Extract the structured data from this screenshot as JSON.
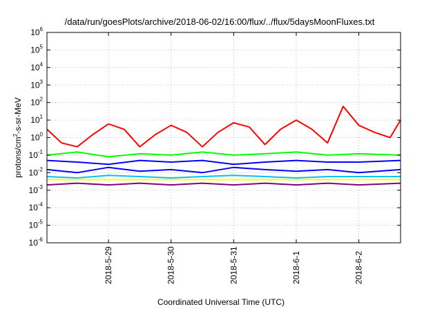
{
  "chart_data": {
    "type": "line",
    "title": "/data/run/goesPlots/archive/2018-06-02/16:00/flux/../flux/5daysMoonFluxes.txt",
    "xlabel": "Coordinated Universal Time (UTC)",
    "ylabel": {
      "pre": "protons/cm",
      "sup": "2",
      "post": "-s-sr-MeV"
    },
    "y_scale": "log",
    "ylim": [
      -6,
      6
    ],
    "y_ticks": [
      {
        "base": "10",
        "exp": "-6"
      },
      {
        "base": "10",
        "exp": "-5"
      },
      {
        "base": "10",
        "exp": "-4"
      },
      {
        "base": "10",
        "exp": "-3"
      },
      {
        "base": "10",
        "exp": "-2"
      },
      {
        "base": "10",
        "exp": "-1"
      },
      {
        "base": "10",
        "exp": "0"
      },
      {
        "base": "10",
        "exp": "1"
      },
      {
        "base": "10",
        "exp": "2"
      },
      {
        "base": "10",
        "exp": "3"
      },
      {
        "base": "10",
        "exp": "4"
      },
      {
        "base": "10",
        "exp": "5"
      },
      {
        "base": "10",
        "exp": "6"
      }
    ],
    "xlim": [
      "2018-05-28T00:24",
      "2018-06-02T16:00"
    ],
    "x_tick_labels": [
      "2018-5-29",
      "2018-5-30",
      "2018-5-31",
      "2018-6-1",
      "2018-6-2"
    ],
    "x_tick_dates": [
      "2018-05-29",
      "2018-05-30",
      "2018-05-31",
      "2018-06-01",
      "2018-06-02"
    ],
    "grid": true,
    "legend": "none",
    "series": [
      {
        "color": "#ff0000",
        "x": [
          "2018-05-28T00:24",
          "2018-05-28T06:00",
          "2018-05-28T12:00",
          "2018-05-28T18:00",
          "2018-05-29T00:00",
          "2018-05-29T06:00",
          "2018-05-29T12:00",
          "2018-05-29T18:00",
          "2018-05-30T00:00",
          "2018-05-30T06:00",
          "2018-05-30T12:00",
          "2018-05-30T18:00",
          "2018-05-31T00:00",
          "2018-05-31T06:00",
          "2018-05-31T12:00",
          "2018-05-31T18:00",
          "2018-06-01T00:00",
          "2018-06-01T06:00",
          "2018-06-01T12:00",
          "2018-06-01T18:00",
          "2018-06-02T00:00",
          "2018-06-02T06:00",
          "2018-06-02T12:00",
          "2018-06-02T16:00"
        ],
        "y": [
          3,
          0.5,
          0.3,
          1.5,
          6,
          3,
          0.3,
          1.5,
          5,
          2,
          0.3,
          2,
          7,
          4,
          0.4,
          3,
          10,
          3,
          0.5,
          60,
          5,
          2,
          1,
          10
        ]
      },
      {
        "color": "#00ff00",
        "x": [
          "2018-05-28T00:24",
          "2018-05-28T12:00",
          "2018-05-29T00:00",
          "2018-05-29T12:00",
          "2018-05-30T00:00",
          "2018-05-30T12:00",
          "2018-05-31T00:00",
          "2018-05-31T12:00",
          "2018-06-01T00:00",
          "2018-06-01T12:00",
          "2018-06-02T00:00",
          "2018-06-02T16:00"
        ],
        "y": [
          0.1,
          0.15,
          0.08,
          0.12,
          0.1,
          0.15,
          0.1,
          0.12,
          0.15,
          0.1,
          0.12,
          0.1
        ]
      },
      {
        "color": "#0000ff",
        "x": [
          "2018-05-28T00:24",
          "2018-05-28T12:00",
          "2018-05-29T00:00",
          "2018-05-29T12:00",
          "2018-05-30T00:00",
          "2018-05-30T12:00",
          "2018-05-31T00:00",
          "2018-05-31T12:00",
          "2018-06-01T00:00",
          "2018-06-01T12:00",
          "2018-06-02T00:00",
          "2018-06-02T16:00"
        ],
        "y": [
          0.05,
          0.04,
          0.03,
          0.05,
          0.04,
          0.05,
          0.03,
          0.04,
          0.05,
          0.04,
          0.04,
          0.05
        ]
      },
      {
        "color": "#0000ff",
        "x": [
          "2018-05-28T00:24",
          "2018-05-28T12:00",
          "2018-05-29T00:00",
          "2018-05-29T12:00",
          "2018-05-30T00:00",
          "2018-05-30T12:00",
          "2018-05-31T00:00",
          "2018-05-31T12:00",
          "2018-06-01T00:00",
          "2018-06-01T12:00",
          "2018-06-02T00:00",
          "2018-06-02T16:00"
        ],
        "y": [
          0.015,
          0.01,
          0.02,
          0.012,
          0.015,
          0.01,
          0.02,
          0.015,
          0.012,
          0.015,
          0.01,
          0.015
        ]
      },
      {
        "color": "#00bfff",
        "x": [
          "2018-05-28T00:24",
          "2018-05-28T12:00",
          "2018-05-29T00:00",
          "2018-05-29T12:00",
          "2018-05-30T00:00",
          "2018-05-30T12:00",
          "2018-05-31T00:00",
          "2018-05-31T12:00",
          "2018-06-01T00:00",
          "2018-06-01T12:00",
          "2018-06-02T00:00",
          "2018-06-02T16:00"
        ],
        "y": [
          0.006,
          0.005,
          0.007,
          0.006,
          0.005,
          0.006,
          0.007,
          0.006,
          0.005,
          0.006,
          0.006,
          0.006
        ]
      },
      {
        "color": "#ffff00",
        "x": [
          "2018-05-28T00:24",
          "2018-05-28T12:00",
          "2018-05-29T00:00",
          "2018-05-29T12:00",
          "2018-05-30T00:00",
          "2018-05-30T12:00",
          "2018-05-31T00:00",
          "2018-05-31T12:00",
          "2018-06-01T00:00",
          "2018-06-01T12:00",
          "2018-06-02T00:00",
          "2018-06-02T16:00"
        ],
        "y": [
          0.004,
          0.004,
          0.004,
          0.004,
          0.004,
          0.004,
          0.004,
          0.004,
          0.004,
          0.004,
          0.004,
          0.004
        ]
      },
      {
        "color": "#800080",
        "x": [
          "2018-05-28T00:24",
          "2018-05-28T12:00",
          "2018-05-29T00:00",
          "2018-05-29T12:00",
          "2018-05-30T00:00",
          "2018-05-30T12:00",
          "2018-05-31T00:00",
          "2018-05-31T12:00",
          "2018-06-01T00:00",
          "2018-06-01T12:00",
          "2018-06-02T00:00",
          "2018-06-02T16:00"
        ],
        "y": [
          0.002,
          0.0025,
          0.002,
          0.0025,
          0.002,
          0.0025,
          0.002,
          0.0025,
          0.002,
          0.0025,
          0.002,
          0.0025
        ]
      }
    ]
  }
}
